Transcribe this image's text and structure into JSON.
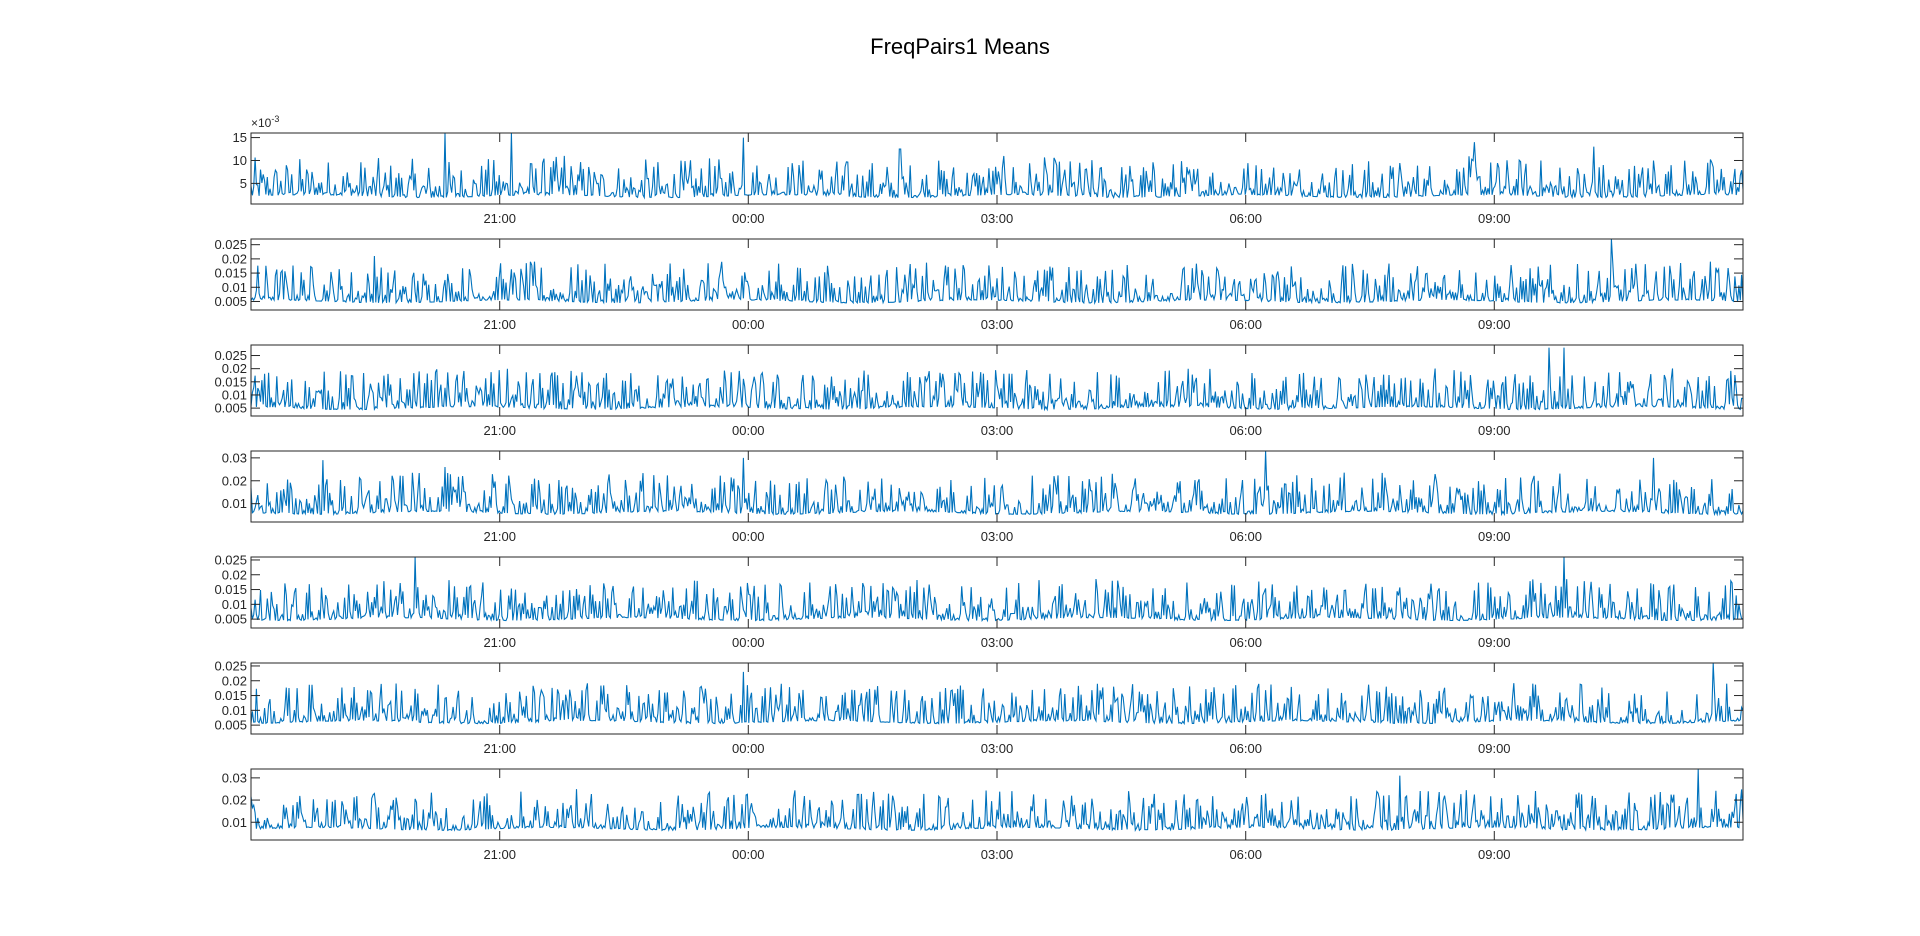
{
  "figure": {
    "title": "FreqPairs1 Means"
  },
  "chart_data": {
    "type": "line",
    "title": "FreqPairs1 Means",
    "line_color": "#0072BD",
    "axis_color": "#262626",
    "subplots": [
      {
        "name": "subplot-1",
        "exponent_label": "×10",
        "exponent_power": "-3",
        "x_tick_labels": [
          "21:00",
          "00:00",
          "03:00",
          "06:00",
          "09:00"
        ],
        "y_ticks": [
          5,
          10,
          15
        ],
        "y_tick_labels": [
          "5",
          "10",
          "15"
        ],
        "ylim": [
          0.5,
          16
        ],
        "baseline": 2.2,
        "spikes": [
          [
            0.13,
            16
          ],
          [
            0.175,
            16
          ],
          [
            0.21,
            11
          ],
          [
            0.33,
            15
          ],
          [
            0.435,
            12.5
          ],
          [
            0.82,
            14
          ],
          [
            0.9,
            13
          ],
          [
            0.94,
            10
          ]
        ]
      },
      {
        "name": "subplot-2",
        "x_tick_labels": [
          "21:00",
          "00:00",
          "03:00",
          "06:00",
          "09:00"
        ],
        "y_ticks": [
          0.005,
          0.01,
          0.015,
          0.02,
          0.025
        ],
        "y_tick_labels": [
          "0.005",
          "0.01",
          "0.015",
          "0.02",
          "0.025"
        ],
        "ylim": [
          0.002,
          0.027
        ],
        "baseline": 0.005,
        "spikes": [
          [
            0.083,
            0.021
          ],
          [
            0.19,
            0.019
          ],
          [
            0.81,
            0.016
          ],
          [
            0.912,
            0.027
          ]
        ]
      },
      {
        "name": "subplot-3",
        "x_tick_labels": [
          "21:00",
          "00:00",
          "03:00",
          "06:00",
          "09:00"
        ],
        "y_ticks": [
          0.005,
          0.01,
          0.015,
          0.02,
          0.025
        ],
        "y_tick_labels": [
          "0.005",
          "0.01",
          "0.015",
          "0.02",
          "0.025"
        ],
        "ylim": [
          0.002,
          0.029
        ],
        "baseline": 0.005,
        "spikes": [
          [
            0.06,
            0.019
          ],
          [
            0.87,
            0.028
          ],
          [
            0.88,
            0.028
          ]
        ]
      },
      {
        "name": "subplot-4",
        "x_tick_labels": [
          "21:00",
          "00:00",
          "03:00",
          "06:00",
          "09:00"
        ],
        "y_ticks": [
          0.01,
          0.02,
          0.03
        ],
        "y_tick_labels": [
          "0.01",
          "0.02",
          "0.03"
        ],
        "ylim": [
          0.002,
          0.033
        ],
        "baseline": 0.006,
        "spikes": [
          [
            0.048,
            0.029
          ],
          [
            0.13,
            0.026
          ],
          [
            0.33,
            0.03
          ],
          [
            0.68,
            0.033
          ],
          [
            0.94,
            0.03
          ]
        ]
      },
      {
        "name": "subplot-5",
        "x_tick_labels": [
          "21:00",
          "00:00",
          "03:00",
          "06:00",
          "09:00"
        ],
        "y_ticks": [
          0.005,
          0.01,
          0.015,
          0.02,
          0.025
        ],
        "y_tick_labels": [
          "0.005",
          "0.01",
          "0.015",
          "0.02",
          "0.025"
        ],
        "ylim": [
          0.002,
          0.026
        ],
        "baseline": 0.005,
        "spikes": [
          [
            0.11,
            0.026
          ],
          [
            0.88,
            0.026
          ]
        ]
      },
      {
        "name": "subplot-6",
        "x_tick_labels": [
          "21:00",
          "00:00",
          "03:00",
          "06:00",
          "09:00"
        ],
        "y_ticks": [
          0.005,
          0.01,
          0.015,
          0.02,
          0.025
        ],
        "y_tick_labels": [
          "0.005",
          "0.01",
          "0.015",
          "0.02",
          "0.025"
        ],
        "ylim": [
          0.002,
          0.026
        ],
        "baseline": 0.006,
        "spikes": [
          [
            0.33,
            0.023
          ],
          [
            0.98,
            0.026
          ]
        ]
      },
      {
        "name": "subplot-7",
        "x_tick_labels": [
          "21:00",
          "00:00",
          "03:00",
          "06:00",
          "09:00"
        ],
        "y_ticks": [
          0.01,
          0.02,
          0.03
        ],
        "y_tick_labels": [
          "0.01",
          "0.02",
          "0.03"
        ],
        "ylim": [
          0.002,
          0.034
        ],
        "baseline": 0.007,
        "spikes": [
          [
            0.005,
            0.034
          ],
          [
            0.77,
            0.031
          ],
          [
            0.97,
            0.034
          ]
        ]
      }
    ]
  }
}
